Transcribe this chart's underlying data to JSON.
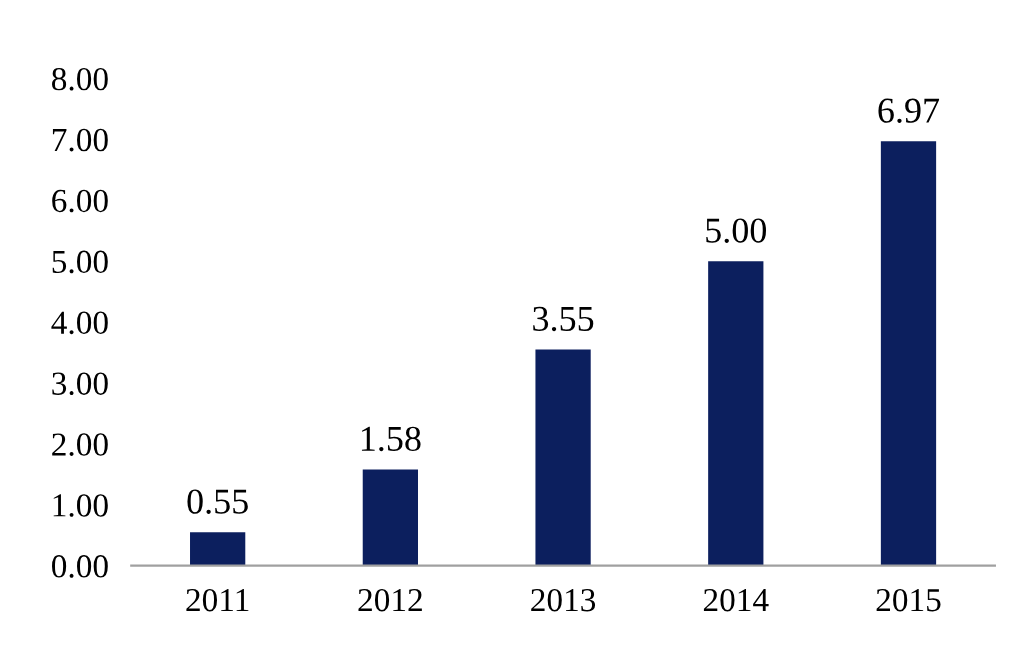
{
  "chart_data": {
    "type": "bar",
    "categories": [
      "2011",
      "2012",
      "2013",
      "2014",
      "2015"
    ],
    "values": [
      0.55,
      1.58,
      3.55,
      5.0,
      6.97
    ],
    "value_labels": [
      "0.55",
      "1.58",
      "3.55",
      "5.00",
      "6.97"
    ],
    "color": "#0c1f5e",
    "ylim": [
      0,
      8
    ],
    "yticks": [
      {
        "value": 0,
        "label": "0.00"
      },
      {
        "value": 1,
        "label": "1.00"
      },
      {
        "value": 2,
        "label": "2.00"
      },
      {
        "value": 3,
        "label": "3.00"
      },
      {
        "value": 4,
        "label": "4.00"
      },
      {
        "value": 5,
        "label": "5.00"
      },
      {
        "value": 6,
        "label": "6.00"
      },
      {
        "value": 7,
        "label": "7.00"
      },
      {
        "value": 8,
        "label": "8.00"
      }
    ],
    "grid": false,
    "legend": false
  }
}
